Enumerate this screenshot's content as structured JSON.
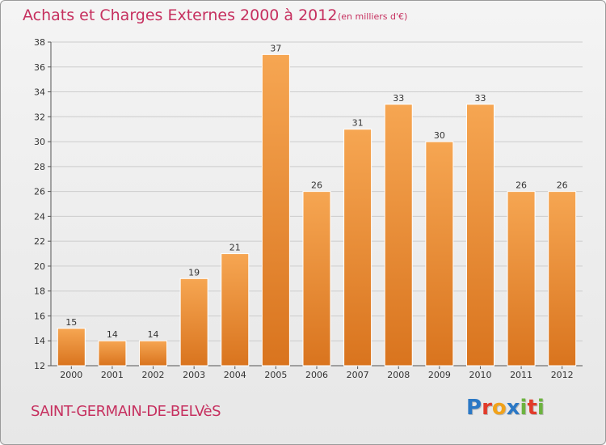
{
  "header": {
    "title": "Achats et Charges Externes 2000 à 2012",
    "subtitle": "(en milliers d'€)"
  },
  "footer": {
    "commune": "SAINT-GERMAIN-DE-BELVèS",
    "logo_letters": [
      "P",
      "r",
      "o",
      "x",
      "i",
      "t",
      "i"
    ]
  },
  "colors": {
    "title": "#c6305f",
    "bar_top": "#f6a652",
    "bar_bottom": "#d9741e",
    "grid": "#cccccc",
    "logo": [
      "#2b78c5",
      "#e23b2a",
      "#f1a21a",
      "#2b78c5",
      "#6cb33f",
      "#e23b2a",
      "#6cb33f"
    ]
  },
  "chart_data": {
    "type": "bar",
    "categories": [
      "2000",
      "2001",
      "2002",
      "2003",
      "2004",
      "2005",
      "2006",
      "2007",
      "2008",
      "2009",
      "2010",
      "2011",
      "2012"
    ],
    "values": [
      15,
      14,
      14,
      19,
      21,
      37,
      26,
      31,
      33,
      30,
      33,
      26,
      26
    ],
    "data_labels": [
      "15",
      "14",
      "14",
      "19",
      "21",
      "37",
      "26",
      "31",
      "33",
      "30",
      "33",
      "26",
      "26"
    ],
    "ylim": [
      12,
      38
    ],
    "yticks": [
      "12",
      "14",
      "16",
      "18",
      "20",
      "22",
      "24",
      "26",
      "28",
      "30",
      "32",
      "34",
      "36",
      "38"
    ],
    "grid": true,
    "legend": "none"
  }
}
